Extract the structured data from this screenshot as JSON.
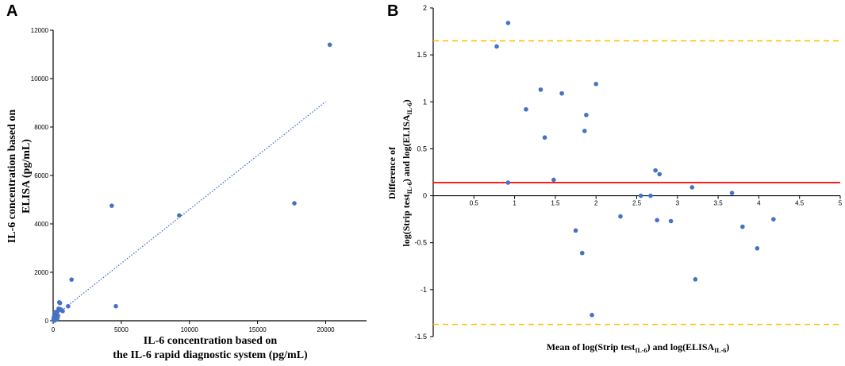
{
  "chart_data": [
    {
      "panel": "A",
      "type": "scatter",
      "xlabel_line1": "IL-6 concentration based on",
      "xlabel_line2": "the IL-6 rapid diagnostic system (pg/mL)",
      "ylabel_line1": "IL-6 concentration based on",
      "ylabel_line2": "ELISA (pg/mL)",
      "xlim": [
        0,
        23000
      ],
      "ylim": [
        0,
        12000
      ],
      "xticks": [
        0,
        5000,
        10000,
        15000,
        20000
      ],
      "yticks": [
        0,
        2000,
        4000,
        6000,
        8000,
        10000,
        12000
      ],
      "point_color": "#4472C4",
      "points": [
        [
          20,
          30
        ],
        [
          40,
          120
        ],
        [
          60,
          60
        ],
        [
          80,
          200
        ],
        [
          100,
          10
        ],
        [
          120,
          90
        ],
        [
          150,
          350
        ],
        [
          180,
          150
        ],
        [
          200,
          40
        ],
        [
          250,
          280
        ],
        [
          300,
          380
        ],
        [
          320,
          110
        ],
        [
          350,
          210
        ],
        [
          400,
          500
        ],
        [
          450,
          760
        ],
        [
          500,
          730
        ],
        [
          550,
          470
        ],
        [
          700,
          400
        ],
        [
          1100,
          600
        ],
        [
          1350,
          1700
        ],
        [
          4300,
          4750
        ],
        [
          4600,
          600
        ],
        [
          9250,
          4350
        ],
        [
          17700,
          4850
        ],
        [
          20300,
          11400
        ]
      ],
      "trendline": {
        "x": [
          300,
          20000
        ],
        "y": [
          280,
          9050
        ],
        "style": "dotted",
        "color": "#4472C4"
      }
    },
    {
      "panel": "B",
      "type": "scatter",
      "xlabel": "Mean of log(Strip test",
      "xlabel_sub1": "IL-6",
      "xlabel_mid": ") and log(ELISA",
      "xlabel_sub2": "IL-6",
      "xlabel_end": ")",
      "ylabel_line1": "Difference of",
      "ylabel_line2_a": "log(Strip test",
      "ylabel_line2_sub1": "IL-6",
      "ylabel_line2_b": ") and log(ELISA",
      "ylabel_line2_sub2": "IL-6",
      "ylabel_line2_c": ")",
      "xlim": [
        0,
        5
      ],
      "ylim": [
        -1.5,
        2
      ],
      "xticks": [
        "0.5",
        "1",
        "1.5",
        "2",
        "2.5",
        "3",
        "3.5",
        "4",
        "4.5",
        "5"
      ],
      "yticks": [
        "-1.5",
        "-1",
        "-0.5",
        "0",
        "0.5",
        "1",
        "1.5",
        "2"
      ],
      "point_color": "#4472C4",
      "mean_difference": 0.14,
      "mean_color": "#FF0000",
      "upper_limit": 1.65,
      "lower_limit": -1.37,
      "limit_color": "#FFC000",
      "points": [
        [
          0.78,
          1.59
        ],
        [
          0.92,
          1.84
        ],
        [
          0.92,
          0.14
        ],
        [
          1.14,
          0.92
        ],
        [
          1.32,
          1.13
        ],
        [
          1.37,
          0.62
        ],
        [
          1.48,
          0.17
        ],
        [
          1.58,
          1.09
        ],
        [
          1.75,
          -0.37
        ],
        [
          1.83,
          -0.61
        ],
        [
          1.86,
          0.69
        ],
        [
          1.88,
          0.86
        ],
        [
          1.95,
          -1.27
        ],
        [
          2.0,
          1.19
        ],
        [
          2.3,
          -0.22
        ],
        [
          2.55,
          0.0
        ],
        [
          2.67,
          0.0
        ],
        [
          2.73,
          0.27
        ],
        [
          2.75,
          -0.26
        ],
        [
          2.78,
          0.23
        ],
        [
          2.92,
          -0.27
        ],
        [
          3.18,
          0.09
        ],
        [
          3.22,
          -0.89
        ],
        [
          3.67,
          0.03
        ],
        [
          3.8,
          -0.33
        ],
        [
          3.98,
          -0.56
        ],
        [
          4.18,
          -0.25
        ]
      ]
    }
  ]
}
